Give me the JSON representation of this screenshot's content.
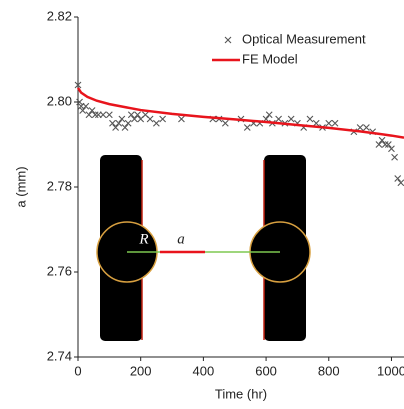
{
  "chart_data": {
    "type": "scatter_line",
    "xlabel": "Time (hr)",
    "ylabel": "a (mm)",
    "xlim": [
      0,
      1040
    ],
    "ylim": [
      2.74,
      2.82
    ],
    "xticks": [
      0,
      200,
      400,
      600,
      800,
      1000
    ],
    "yticks": [
      2.74,
      2.76,
      2.78,
      {
        "value": 2.8,
        "label": "2.80"
      },
      2.82
    ],
    "grid": false,
    "legend": "upper right",
    "series": [
      {
        "name": "Optical Measurement",
        "kind": "scatter",
        "color": "#555555",
        "x": [
          0,
          5,
          10,
          15,
          25,
          35,
          45,
          55,
          65,
          80,
          100,
          110,
          120,
          130,
          140,
          150,
          160,
          170,
          180,
          190,
          200,
          215,
          230,
          250,
          270,
          330,
          430,
          450,
          470,
          520,
          540,
          560,
          580,
          600,
          610,
          620,
          640,
          660,
          680,
          700,
          720,
          740,
          760,
          780,
          800,
          820,
          880,
          900,
          920,
          940,
          960,
          970,
          980,
          990,
          1000,
          1010,
          1020,
          1030
        ],
        "values": [
          2.804,
          2.8,
          2.799,
          2.798,
          2.799,
          2.797,
          2.798,
          2.797,
          2.797,
          2.797,
          2.797,
          2.795,
          2.794,
          2.795,
          2.796,
          2.794,
          2.795,
          2.797,
          2.796,
          2.797,
          2.796,
          2.797,
          2.796,
          2.795,
          2.796,
          2.796,
          2.796,
          2.796,
          2.795,
          2.796,
          2.794,
          2.795,
          2.795,
          2.796,
          2.797,
          2.795,
          2.796,
          2.795,
          2.796,
          2.795,
          2.794,
          2.796,
          2.795,
          2.794,
          2.795,
          2.795,
          2.793,
          2.794,
          2.794,
          2.793,
          2.79,
          2.791,
          2.79,
          2.79,
          2.789,
          2.787,
          2.782,
          2.781
        ]
      },
      {
        "name": "FE Model",
        "kind": "line",
        "color": "#e8141c",
        "x": [
          0,
          10,
          30,
          60,
          100,
          150,
          200,
          300,
          400,
          500,
          600,
          700,
          800,
          900,
          1000,
          1040
        ],
        "values": [
          2.8033,
          2.8022,
          2.8012,
          2.8003,
          2.7995,
          2.7988,
          2.7981,
          2.7972,
          2.7965,
          2.7959,
          2.7953,
          2.7946,
          2.7939,
          2.7931,
          2.7921,
          2.7916
        ]
      }
    ],
    "inset_labels": [
      "R",
      "a"
    ]
  }
}
